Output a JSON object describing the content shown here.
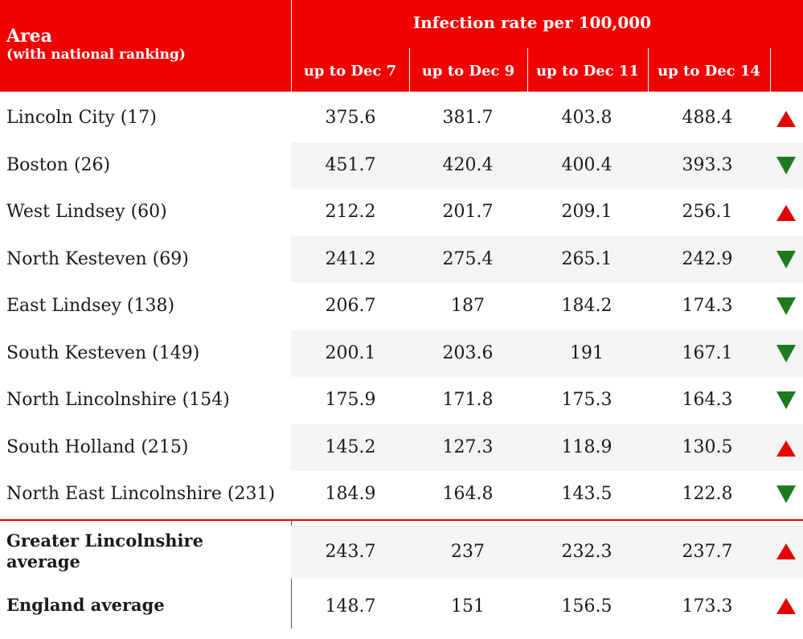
{
  "header": {
    "area_title": "Area",
    "area_subtitle": "(with national ranking)",
    "rate_title": "Infection rate per 100,000",
    "columns": [
      "up to Dec 7",
      "up to Dec 9",
      "up to Dec 11",
      "up to Dec 14"
    ]
  },
  "colors": {
    "header_bg": "#f20000",
    "up_arrow": "#e60000",
    "down_arrow": "#1e7a1e",
    "shade": "#f4f4f4"
  },
  "rows": [
    {
      "area": "Lincoln City (17)",
      "values": [
        "375.6",
        "381.7",
        "403.8",
        "488.4"
      ],
      "trend": "up"
    },
    {
      "area": "Boston (26)",
      "values": [
        "451.7",
        "420.4",
        "400.4",
        "393.3"
      ],
      "trend": "down"
    },
    {
      "area": "West Lindsey (60)",
      "values": [
        "212.2",
        "201.7",
        "209.1",
        "256.1"
      ],
      "trend": "up"
    },
    {
      "area": "North Kesteven (69)",
      "values": [
        "241.2",
        "275.4",
        "265.1",
        "242.9"
      ],
      "trend": "down"
    },
    {
      "area": "East Lindsey (138)",
      "values": [
        "206.7",
        "187",
        "184.2",
        "174.3"
      ],
      "trend": "down"
    },
    {
      "area": "South Kesteven (149)",
      "values": [
        "200.1",
        "203.6",
        "191",
        "167.1"
      ],
      "trend": "down"
    },
    {
      "area": "North Lincolnshire (154)",
      "values": [
        "175.9",
        "171.8",
        "175.3",
        "164.3"
      ],
      "trend": "down"
    },
    {
      "area": "South Holland (215)",
      "values": [
        "145.2",
        "127.3",
        "118.9",
        "130.5"
      ],
      "trend": "up"
    },
    {
      "area": "North East Lincolnshire (231)",
      "values": [
        "184.9",
        "164.8",
        "143.5",
        "122.8"
      ],
      "trend": "down"
    }
  ],
  "averages": [
    {
      "line1": "Greater Lincolnshire",
      "line2": "average",
      "values": [
        "243.7",
        "237",
        "232.3",
        "237.7"
      ],
      "trend": "up"
    },
    {
      "line1": "England average",
      "line2": "",
      "values": [
        "148.7",
        "151",
        "156.5",
        "173.3"
      ],
      "trend": "up"
    }
  ]
}
